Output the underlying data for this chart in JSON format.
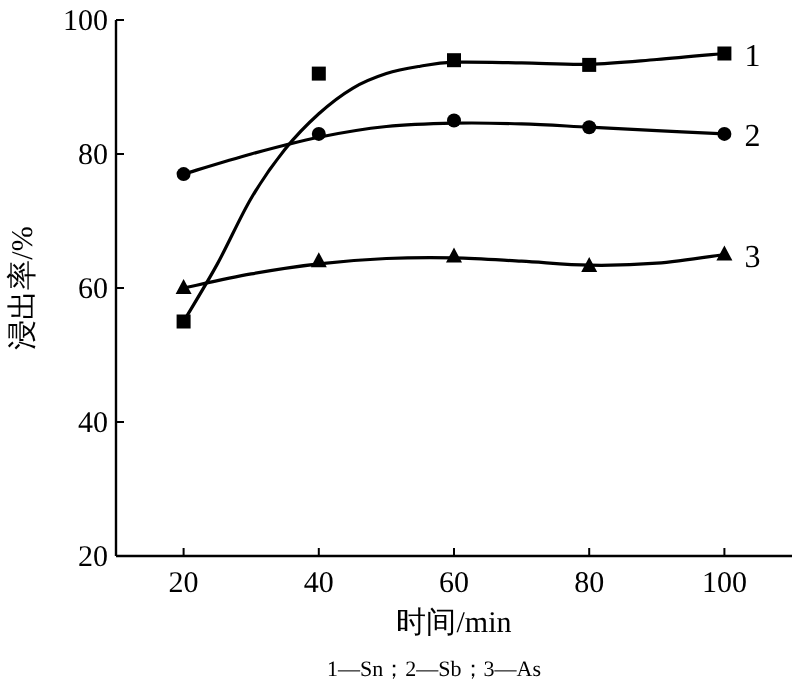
{
  "chart_data": {
    "type": "line",
    "xlabel": "时间/min",
    "ylabel": "浸出率/%",
    "xlim": [
      10,
      110
    ],
    "ylim": [
      20,
      100
    ],
    "xticks": [
      20,
      40,
      60,
      80,
      100
    ],
    "yticks": [
      20,
      40,
      60,
      80,
      100
    ],
    "annotations": [
      "1—Sn；2—Sb；3—As"
    ],
    "series": [
      {
        "name": "1",
        "type": "scatter",
        "color": "#000000",
        "marker": "square",
        "x": [
          20,
          40,
          60,
          80,
          100
        ],
        "values": [
          55,
          92,
          94,
          93.3,
          95
        ]
      },
      {
        "name": "2",
        "type": "scatter",
        "color": "#000000",
        "marker": "circle",
        "x": [
          20,
          40,
          60,
          80,
          100
        ],
        "values": [
          77,
          83,
          85,
          84,
          83
        ]
      },
      {
        "name": "3",
        "type": "scatter",
        "color": "#000000",
        "marker": "triangle",
        "x": [
          20,
          40,
          60,
          80,
          100
        ],
        "values": [
          60,
          64,
          64.7,
          63.3,
          65
        ]
      },
      {
        "color": "#000000",
        "marker": "none",
        "x": [
          20,
          25,
          30,
          35,
          40,
          45,
          50,
          55,
          60,
          70,
          80,
          90,
          100
        ],
        "values": [
          55,
          63.6,
          73.4,
          80.7,
          86,
          89.8,
          92,
          93.1,
          93.7,
          93.6,
          93.4,
          94.1,
          95
        ]
      },
      {
        "color": "#000000",
        "marker": "none",
        "x": [
          20,
          30,
          40,
          50,
          60,
          70,
          80,
          90,
          100
        ],
        "values": [
          77,
          80,
          82.5,
          84.1,
          84.6,
          84.5,
          84,
          83.5,
          83
        ]
      },
      {
        "color": "#000000",
        "marker": "none",
        "x": [
          20,
          30,
          40,
          50,
          60,
          70,
          80,
          90,
          100
        ],
        "values": [
          60,
          62.1,
          63.6,
          64.4,
          64.5,
          64,
          63.4,
          63.7,
          65
        ]
      }
    ]
  }
}
